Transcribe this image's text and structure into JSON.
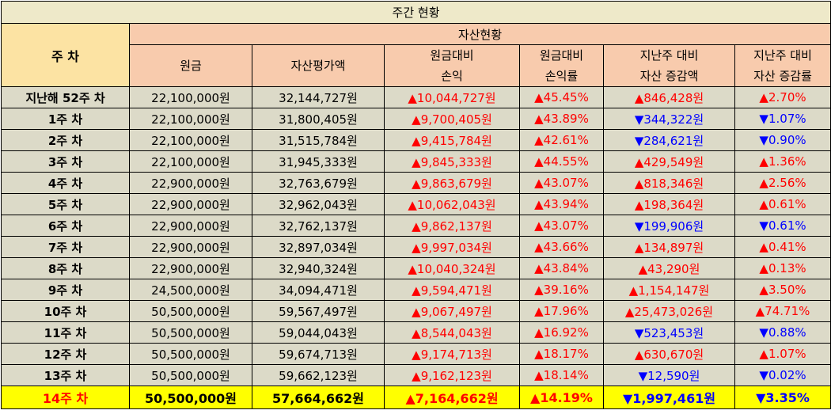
{
  "title": "주간 현황",
  "header": {
    "week_label": "주 차",
    "group_label": "자산현황",
    "columns": [
      {
        "line1": "원금",
        "line2": ""
      },
      {
        "line1": "자산평가액",
        "line2": ""
      },
      {
        "line1": "원금대비",
        "line2": "손익"
      },
      {
        "line1": "원금대비",
        "line2": "손익률"
      },
      {
        "line1": "지난주 대비",
        "line2": "자산 증감액"
      },
      {
        "line1": "지난주 대비",
        "line2": "자산 증감률"
      }
    ]
  },
  "colors": {
    "up": "#ff0000",
    "down": "#0000ff",
    "highlight": "#ffff00"
  },
  "rows": [
    {
      "week": "지난해 52주 차",
      "principal": "22,100,000원",
      "asset_value": "32,144,727원",
      "profit": "▲10,044,727원",
      "profit_dir": "up",
      "profit_rate": "▲45.45%",
      "rate_dir": "up",
      "weekly_change": "▲846,428원",
      "change_dir": "up",
      "weekly_rate": "▲2.70%",
      "wrate_dir": "up"
    },
    {
      "week": "1주 차",
      "principal": "22,100,000원",
      "asset_value": "31,800,405원",
      "profit": "▲9,700,405원",
      "profit_dir": "up",
      "profit_rate": "▲43.89%",
      "rate_dir": "up",
      "weekly_change": "▼344,322원",
      "change_dir": "dn",
      "weekly_rate": "▼1.07%",
      "wrate_dir": "dn"
    },
    {
      "week": "2주 차",
      "principal": "22,100,000원",
      "asset_value": "31,515,784원",
      "profit": "▲9,415,784원",
      "profit_dir": "up",
      "profit_rate": "▲42.61%",
      "rate_dir": "up",
      "weekly_change": "▼284,621원",
      "change_dir": "dn",
      "weekly_rate": "▼0.90%",
      "wrate_dir": "dn"
    },
    {
      "week": "3주 차",
      "principal": "22,100,000원",
      "asset_value": "31,945,333원",
      "profit": "▲9,845,333원",
      "profit_dir": "up",
      "profit_rate": "▲44.55%",
      "rate_dir": "up",
      "weekly_change": "▲429,549원",
      "change_dir": "up",
      "weekly_rate": "▲1.36%",
      "wrate_dir": "up"
    },
    {
      "week": "4주 차",
      "principal": "22,900,000원",
      "asset_value": "32,763,679원",
      "profit": "▲9,863,679원",
      "profit_dir": "up",
      "profit_rate": "▲43.07%",
      "rate_dir": "up",
      "weekly_change": "▲818,346원",
      "change_dir": "up",
      "weekly_rate": "▲2.56%",
      "wrate_dir": "up"
    },
    {
      "week": "5주 차",
      "principal": "22,900,000원",
      "asset_value": "32,962,043원",
      "profit": "▲10,062,043원",
      "profit_dir": "up",
      "profit_rate": "▲43.94%",
      "rate_dir": "up",
      "weekly_change": "▲198,364원",
      "change_dir": "up",
      "weekly_rate": "▲0.61%",
      "wrate_dir": "up"
    },
    {
      "week": "6주 차",
      "principal": "22,900,000원",
      "asset_value": "32,762,137원",
      "profit": "▲9,862,137원",
      "profit_dir": "up",
      "profit_rate": "▲43.07%",
      "rate_dir": "up",
      "weekly_change": "▼199,906원",
      "change_dir": "dn",
      "weekly_rate": "▼0.61%",
      "wrate_dir": "dn"
    },
    {
      "week": "7주 차",
      "principal": "22,900,000원",
      "asset_value": "32,897,034원",
      "profit": "▲9,997,034원",
      "profit_dir": "up",
      "profit_rate": "▲43.66%",
      "rate_dir": "up",
      "weekly_change": "▲134,897원",
      "change_dir": "up",
      "weekly_rate": "▲0.41%",
      "wrate_dir": "up"
    },
    {
      "week": "8주 차",
      "principal": "22,900,000원",
      "asset_value": "32,940,324원",
      "profit": "▲10,040,324원",
      "profit_dir": "up",
      "profit_rate": "▲43.84%",
      "rate_dir": "up",
      "weekly_change": "▲43,290원",
      "change_dir": "up",
      "weekly_rate": "▲0.13%",
      "wrate_dir": "up"
    },
    {
      "week": "9주 차",
      "principal": "24,500,000원",
      "asset_value": "34,094,471원",
      "profit": "▲9,594,471원",
      "profit_dir": "up",
      "profit_rate": "▲39.16%",
      "rate_dir": "up",
      "weekly_change": "▲1,154,147원",
      "change_dir": "up",
      "weekly_rate": "▲3.50%",
      "wrate_dir": "up"
    },
    {
      "week": "10주 차",
      "principal": "50,500,000원",
      "asset_value": "59,567,497원",
      "profit": "▲9,067,497원",
      "profit_dir": "up",
      "profit_rate": "▲17.96%",
      "rate_dir": "up",
      "weekly_change": "▲25,473,026원",
      "change_dir": "up",
      "weekly_rate": "▲74.71%",
      "wrate_dir": "up"
    },
    {
      "week": "11주 차",
      "principal": "50,500,000원",
      "asset_value": "59,044,043원",
      "profit": "▲8,544,043원",
      "profit_dir": "up",
      "profit_rate": "▲16.92%",
      "rate_dir": "up",
      "weekly_change": "▼523,453원",
      "change_dir": "dn",
      "weekly_rate": "▼0.88%",
      "wrate_dir": "dn"
    },
    {
      "week": "12주 차",
      "principal": "50,500,000원",
      "asset_value": "59,674,713원",
      "profit": "▲9,174,713원",
      "profit_dir": "up",
      "profit_rate": "▲18.17%",
      "rate_dir": "up",
      "weekly_change": "▲630,670원",
      "change_dir": "up",
      "weekly_rate": "▲1.07%",
      "wrate_dir": "up"
    },
    {
      "week": "13주 차",
      "principal": "50,500,000원",
      "asset_value": "59,662,123원",
      "profit": "▲9,162,123원",
      "profit_dir": "up",
      "profit_rate": "▲18.14%",
      "rate_dir": "up",
      "weekly_change": "▼12,590원",
      "change_dir": "dn",
      "weekly_rate": "▼0.02%",
      "wrate_dir": "dn"
    }
  ],
  "last_row": {
    "week": "14주 차",
    "principal": "50,500,000원",
    "asset_value": "57,664,662원",
    "profit": "▲7,164,662원",
    "profit_dir": "up",
    "profit_rate": "▲14.19%",
    "rate_dir": "up",
    "weekly_change": "▼1,997,461원",
    "change_dir": "dn",
    "weekly_rate": "▼3.35%",
    "wrate_dir": "dn"
  }
}
